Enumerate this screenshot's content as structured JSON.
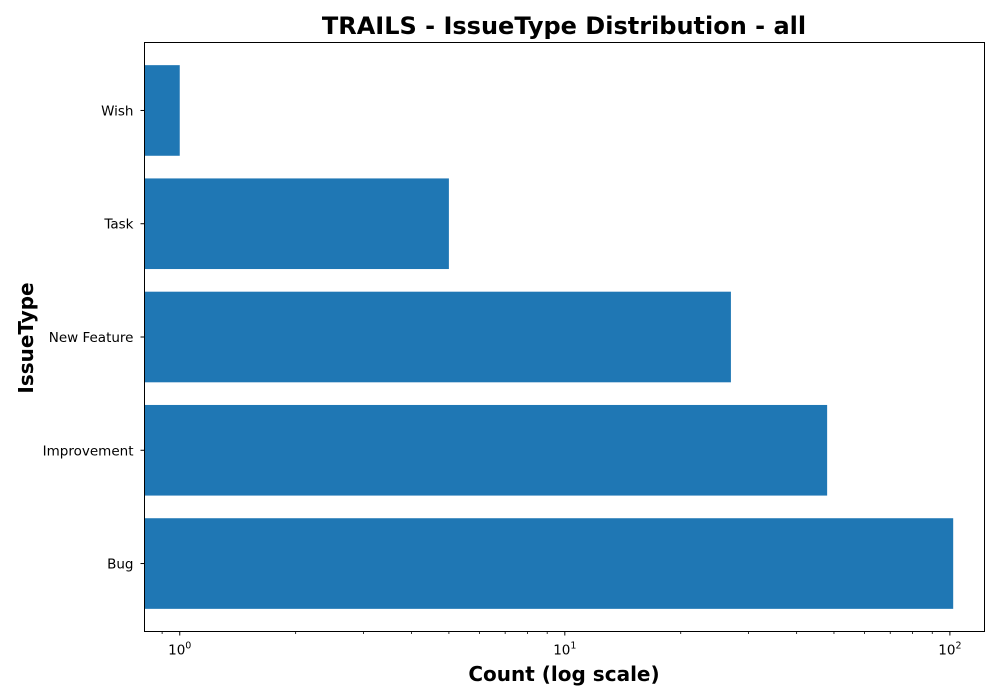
{
  "chart_data": {
    "type": "bar",
    "orientation": "horizontal",
    "title": "TRAILS - IssueType Distribution - all",
    "xlabel": "Count (log scale)",
    "ylabel": "IssueType",
    "xscale": "log",
    "xlim": [
      0.81,
      123
    ],
    "categories": [
      "Bug",
      "Improvement",
      "New Feature",
      "Task",
      "Wish"
    ],
    "values": [
      102,
      48,
      27,
      5,
      1
    ],
    "x_ticks": [
      {
        "base": "10",
        "exp": "0",
        "value": 1
      },
      {
        "base": "10",
        "exp": "1",
        "value": 10
      },
      {
        "base": "10",
        "exp": "2",
        "value": 100
      }
    ],
    "bar_color": "#1f77b4",
    "grid": false
  }
}
